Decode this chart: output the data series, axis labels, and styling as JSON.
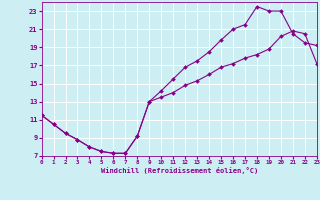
{
  "xlabel": "Windchill (Refroidissement éolien,°C)",
  "bg_color": "#cdeef2",
  "line_color": "#880088",
  "grid_color": "#ffffff",
  "xlim": [
    0,
    23
  ],
  "ylim": [
    7,
    24
  ],
  "xticks": [
    0,
    1,
    2,
    3,
    4,
    5,
    6,
    7,
    8,
    9,
    10,
    11,
    12,
    13,
    14,
    15,
    16,
    17,
    18,
    19,
    20,
    21,
    22,
    23
  ],
  "yticks": [
    7,
    9,
    11,
    13,
    15,
    17,
    19,
    21,
    23
  ],
  "line1_x": [
    0,
    1,
    2,
    3,
    4,
    5,
    6,
    7,
    8,
    9,
    10,
    11,
    12,
    13,
    14,
    15,
    16,
    17,
    18,
    19,
    20,
    21,
    22,
    23
  ],
  "line1_y": [
    11.5,
    10.5,
    9.5,
    8.8,
    8.0,
    7.5,
    7.3,
    7.3,
    9.2,
    13.0,
    14.2,
    15.5,
    16.8,
    17.5,
    18.5,
    19.8,
    21.0,
    21.5,
    23.5,
    23.0,
    23.0,
    20.5,
    19.5,
    19.2
  ],
  "line2_x": [
    0,
    1,
    2,
    3,
    4,
    5,
    6,
    7,
    8,
    9,
    10,
    11,
    12,
    13,
    14,
    15,
    16,
    17,
    18,
    19,
    20,
    21,
    22,
    23
  ],
  "line2_y": [
    11.5,
    10.5,
    9.5,
    8.8,
    8.0,
    7.5,
    7.3,
    7.3,
    9.2,
    13.0,
    13.5,
    14.0,
    14.8,
    15.3,
    16.0,
    16.8,
    17.2,
    17.8,
    18.2,
    18.8,
    20.2,
    20.8,
    20.5,
    17.2
  ]
}
